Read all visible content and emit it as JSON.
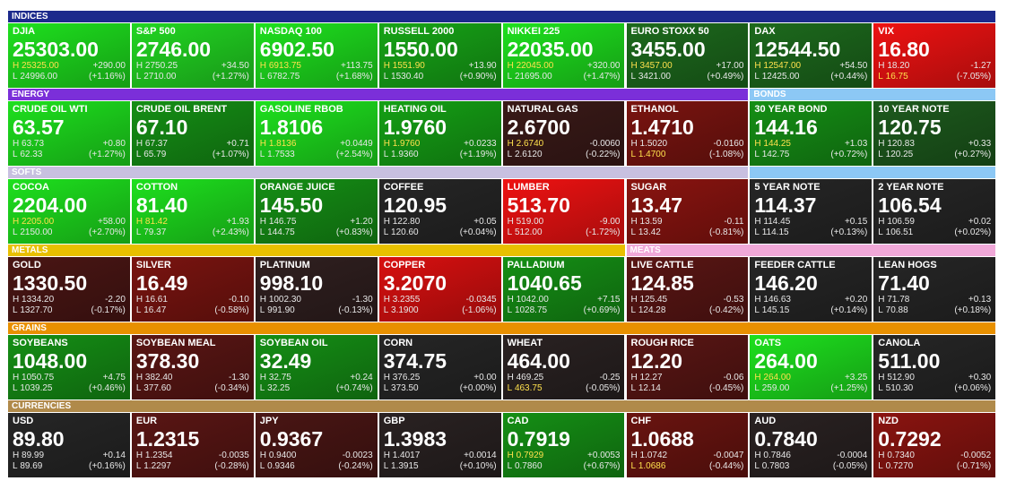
{
  "labels": {
    "high": "H",
    "low": "L"
  },
  "highlight_color": "#ffe14d",
  "sections": [
    {
      "label": "INDICES",
      "color": "#1c2a8c",
      "tiles": [
        {
          "name": "DJIA",
          "price": "25303.00",
          "high": "25325.00",
          "change": "+290.00",
          "low": "24996.00",
          "pct": "(+1.16%)",
          "color": "#1ee01e",
          "high_hit": true
        },
        {
          "name": "S&P 500",
          "price": "2746.00",
          "high": "2750.25",
          "change": "+34.50",
          "low": "2710.00",
          "pct": "(+1.27%)",
          "color": "#22d622"
        },
        {
          "name": "NASDAQ 100",
          "price": "6902.50",
          "high": "6913.75",
          "change": "+113.75",
          "low": "6782.75",
          "pct": "(+1.68%)",
          "color": "#1ee01e",
          "high_hit": true
        },
        {
          "name": "RUSSELL 2000",
          "price": "1550.00",
          "high": "1551.90",
          "change": "+13.90",
          "low": "1530.40",
          "pct": "(+0.90%)",
          "color": "#17a417",
          "high_hit": true
        },
        {
          "name": "NIKKEI 225",
          "price": "22035.00",
          "high": "22045.00",
          "change": "+320.00",
          "low": "21695.00",
          "pct": "(+1.47%)",
          "color": "#1ee01e",
          "high_hit": true
        },
        {
          "name": "EURO STOXX 50",
          "price": "3455.00",
          "high": "3457.00",
          "change": "+17.00",
          "low": "3421.00",
          "pct": "(+0.49%)",
          "color": "#1d6a1d",
          "high_hit": true
        },
        {
          "name": "DAX",
          "price": "12544.50",
          "high": "12547.00",
          "change": "+54.50",
          "low": "12425.00",
          "pct": "(+0.44%)",
          "color": "#1d6a1d",
          "high_hit": true
        },
        {
          "name": "VIX",
          "price": "16.80",
          "high": "18.20",
          "change": "-1.27",
          "low": "16.75",
          "pct": "(-7.05%)",
          "color": "#ee1212",
          "low_hit": true
        }
      ]
    },
    {
      "label": "ENERGY",
      "color": "#7b2fd9",
      "tiles": [
        {
          "name": "CRUDE OIL WTI",
          "price": "63.57",
          "high": "63.73",
          "change": "+0.80",
          "low": "62.33",
          "pct": "(+1.27%)",
          "color": "#1ee01e"
        },
        {
          "name": "CRUDE OIL BRENT",
          "price": "67.10",
          "high": "67.37",
          "change": "+0.71",
          "low": "65.79",
          "pct": "(+1.07%)",
          "color": "#158f15"
        },
        {
          "name": "GASOLINE RBOB",
          "price": "1.8106",
          "high": "1.8136",
          "change": "+0.0449",
          "low": "1.7533",
          "pct": "(+2.54%)",
          "color": "#1ee01e",
          "high_hit": true
        },
        {
          "name": "HEATING OIL",
          "price": "1.9760",
          "high": "1.9760",
          "change": "+0.0233",
          "low": "1.9360",
          "pct": "(+1.19%)",
          "color": "#15a015",
          "high_hit": true
        },
        {
          "name": "NATURAL GAS",
          "price": "2.6700",
          "high": "2.6740",
          "change": "-0.0060",
          "low": "2.6120",
          "pct": "(-0.22%)",
          "color": "#3a1a18",
          "high_hit": true
        },
        {
          "name": "ETHANOL",
          "price": "1.4710",
          "high": "1.5020",
          "change": "-0.0160",
          "low": "1.4700",
          "pct": "(-1.08%)",
          "color": "#7a1410",
          "low_hit": true
        }
      ]
    },
    {
      "label": "BONDS",
      "color": "#8cc8f5",
      "tiles": [
        {
          "name": "30 YEAR BOND",
          "price": "144.16",
          "high": "144.25",
          "change": "+1.03",
          "low": "142.75",
          "pct": "(+0.72%)",
          "color": "#158f15",
          "high_hit": true
        },
        {
          "name": "10 YEAR NOTE",
          "price": "120.75",
          "high": "120.83",
          "change": "+0.33",
          "low": "120.25",
          "pct": "(+0.27%)",
          "color": "#1d5a1d"
        },
        {
          "name": "5 YEAR NOTE",
          "price": "114.37",
          "high": "114.45",
          "change": "+0.15",
          "low": "114.15",
          "pct": "(+0.13%)",
          "color": "#262626"
        },
        {
          "name": "2 YEAR NOTE",
          "price": "106.54",
          "high": "106.59",
          "change": "+0.02",
          "low": "106.51",
          "pct": "(+0.02%)",
          "color": "#262626"
        }
      ]
    },
    {
      "label": "SOFTS",
      "color": "#c8c0e0",
      "tiles": [
        {
          "name": "COCOA",
          "price": "2204.00",
          "high": "2205.00",
          "change": "+58.00",
          "low": "2150.00",
          "pct": "(+2.70%)",
          "color": "#1ee01e",
          "high_hit": true
        },
        {
          "name": "COTTON",
          "price": "81.40",
          "high": "81.42",
          "change": "+1.93",
          "low": "79.37",
          "pct": "(+2.43%)",
          "color": "#1ee01e",
          "high_hit": true
        },
        {
          "name": "ORANGE JUICE",
          "price": "145.50",
          "high": "146.75",
          "change": "+1.20",
          "low": "144.75",
          "pct": "(+0.83%)",
          "color": "#158f15"
        },
        {
          "name": "COFFEE",
          "price": "120.95",
          "high": "122.80",
          "change": "+0.05",
          "low": "120.60",
          "pct": "(+0.04%)",
          "color": "#262626"
        },
        {
          "name": "LUMBER",
          "price": "513.70",
          "high": "519.00",
          "change": "-9.00",
          "low": "512.00",
          "pct": "(-1.72%)",
          "color": "#ee1212"
        },
        {
          "name": "SUGAR",
          "price": "13.47",
          "high": "13.59",
          "change": "-0.11",
          "low": "13.42",
          "pct": "(-0.81%)",
          "color": "#8a1410"
        }
      ]
    },
    {
      "label": "METALS",
      "color": "#e8c000",
      "tiles": [
        {
          "name": "GOLD",
          "price": "1330.50",
          "high": "1334.20",
          "change": "-2.20",
          "low": "1327.70",
          "pct": "(-0.17%)",
          "color": "#4a1614"
        },
        {
          "name": "SILVER",
          "price": "16.49",
          "high": "16.61",
          "change": "-0.10",
          "low": "16.47",
          "pct": "(-0.58%)",
          "color": "#7a1410"
        },
        {
          "name": "PLATINUM",
          "price": "998.10",
          "high": "1002.30",
          "change": "-1.30",
          "low": "991.90",
          "pct": "(-0.13%)",
          "color": "#302020"
        },
        {
          "name": "COPPER",
          "price": "3.2070",
          "high": "3.2355",
          "change": "-0.0345",
          "low": "3.1900",
          "pct": "(-1.06%)",
          "color": "#d81010"
        },
        {
          "name": "PALLADIUM",
          "price": "1040.65",
          "high": "1042.00",
          "change": "+7.15",
          "low": "1028.75",
          "pct": "(+0.69%)",
          "color": "#158f15"
        }
      ]
    },
    {
      "label": "MEATS",
      "color": "#f0a8d8",
      "tiles": [
        {
          "name": "LIVE CATTLE",
          "price": "124.85",
          "high": "125.45",
          "change": "-0.53",
          "low": "124.28",
          "pct": "(-0.42%)",
          "color": "#5a1614"
        },
        {
          "name": "FEEDER CATTLE",
          "price": "146.20",
          "high": "146.63",
          "change": "+0.20",
          "low": "145.15",
          "pct": "(+0.14%)",
          "color": "#262626"
        },
        {
          "name": "LEAN HOGS",
          "price": "71.40",
          "high": "71.78",
          "change": "+0.13",
          "low": "70.88",
          "pct": "(+0.18%)",
          "color": "#262626"
        }
      ]
    },
    {
      "label": "GRAINS",
      "color": "#e89000",
      "tiles": [
        {
          "name": "SOYBEANS",
          "price": "1048.00",
          "high": "1050.75",
          "change": "+4.75",
          "low": "1039.25",
          "pct": "(+0.46%)",
          "color": "#158f15"
        },
        {
          "name": "SOYBEAN MEAL",
          "price": "378.30",
          "high": "382.40",
          "change": "-1.30",
          "low": "377.60",
          "pct": "(-0.34%)",
          "color": "#5a1614"
        },
        {
          "name": "SOYBEAN OIL",
          "price": "32.49",
          "high": "32.75",
          "change": "+0.24",
          "low": "32.25",
          "pct": "(+0.74%)",
          "color": "#158f15"
        },
        {
          "name": "CORN",
          "price": "374.75",
          "high": "376.25",
          "change": "+0.00",
          "low": "373.50",
          "pct": "(+0.00%)",
          "color": "#262626"
        },
        {
          "name": "WHEAT",
          "price": "464.00",
          "high": "469.25",
          "change": "-0.25",
          "low": "463.75",
          "pct": "(-0.05%)",
          "color": "#2a2222",
          "low_hit": true
        },
        {
          "name": "ROUGH RICE",
          "price": "12.20",
          "high": "12.27",
          "change": "-0.06",
          "low": "12.14",
          "pct": "(-0.45%)",
          "color": "#5a1614"
        },
        {
          "name": "OATS",
          "price": "264.00",
          "high": "264.00",
          "change": "+3.25",
          "low": "259.00",
          "pct": "(+1.25%)",
          "color": "#1ee01e",
          "high_hit": true
        },
        {
          "name": "CANOLA",
          "price": "511.00",
          "high": "512.90",
          "change": "+0.30",
          "low": "510.30",
          "pct": "(+0.06%)",
          "color": "#262626"
        }
      ]
    },
    {
      "label": "CURRENCIES",
      "color": "#b08a4a",
      "tiles": [
        {
          "name": "USD",
          "price": "89.80",
          "high": "89.99",
          "change": "+0.14",
          "low": "89.69",
          "pct": "(+0.16%)",
          "color": "#262626"
        },
        {
          "name": "EUR",
          "price": "1.2315",
          "high": "1.2354",
          "change": "-0.0035",
          "low": "1.2297",
          "pct": "(-0.28%)",
          "color": "#5a1614"
        },
        {
          "name": "JPY",
          "price": "0.9367",
          "high": "0.9400",
          "change": "-0.0023",
          "low": "0.9346",
          "pct": "(-0.24%)",
          "color": "#4a1614"
        },
        {
          "name": "GBP",
          "price": "1.3983",
          "high": "1.4017",
          "change": "+0.0014",
          "low": "1.3915",
          "pct": "(+0.10%)",
          "color": "#2a2222"
        },
        {
          "name": "CAD",
          "price": "0.7919",
          "high": "0.7929",
          "change": "+0.0053",
          "low": "0.7860",
          "pct": "(+0.67%)",
          "color": "#158f15",
          "high_hit": true
        },
        {
          "name": "CHF",
          "price": "1.0688",
          "high": "1.0742",
          "change": "-0.0047",
          "low": "1.0686",
          "pct": "(-0.44%)",
          "color": "#6a1410",
          "low_hit": true
        },
        {
          "name": "AUD",
          "price": "0.7840",
          "high": "0.7846",
          "change": "-0.0004",
          "low": "0.7803",
          "pct": "(-0.05%)",
          "color": "#2a2222"
        },
        {
          "name": "NZD",
          "price": "0.7292",
          "high": "0.7340",
          "change": "-0.0052",
          "low": "0.7270",
          "pct": "(-0.71%)",
          "color": "#8a1410"
        }
      ]
    }
  ]
}
